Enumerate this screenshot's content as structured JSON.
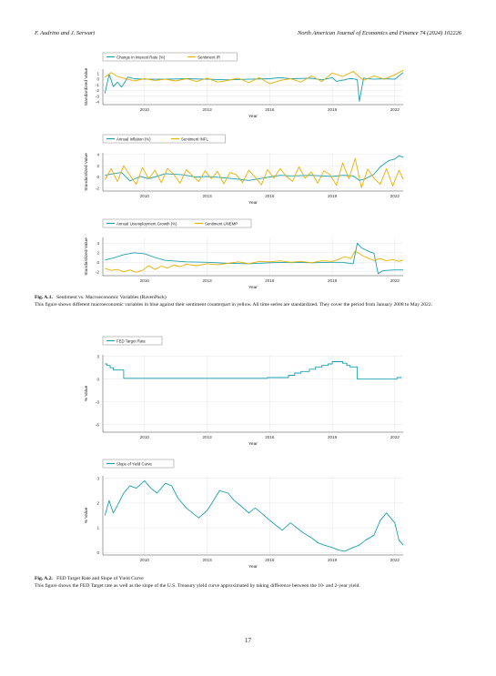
{
  "header": {
    "authors": "F. Audrino and J. Serwart",
    "journal": "North American Journal of Economics and Finance 74 (2024) 102226"
  },
  "colors": {
    "blue": "#1a9fb0",
    "yellow": "#e8b100",
    "grid": "#e6e6e6",
    "axis": "#444444"
  },
  "chart_data": [
    {
      "id": "c1",
      "type": "line",
      "legend": [
        "Change in Interest Rate (%)",
        "Sentiment IR"
      ],
      "ylabel": "Standardized Value",
      "xlabel": "Year",
      "ylim": [
        -4.5,
        1.8
      ],
      "yticks": [
        -4,
        -3,
        -2,
        -1,
        0,
        1
      ],
      "xlim": [
        2008.0,
        2022.4
      ],
      "xticks": [
        2010,
        2013,
        2016,
        2019,
        2022
      ],
      "series": [
        {
          "color": "blue",
          "x": [
            2008.1,
            2008.3,
            2008.5,
            2008.7,
            2008.9,
            2009.2,
            2009.5,
            2010,
            2011,
            2012,
            2013,
            2014,
            2015,
            2016,
            2016.5,
            2017,
            2018,
            2018.5,
            2019,
            2019.2,
            2019.4,
            2019.6,
            2019.8,
            2020,
            2020.2,
            2020.3,
            2020.5,
            2021,
            2021.5,
            2022,
            2022.2,
            2022.4
          ],
          "y": [
            -2.5,
            0.9,
            -1.3,
            -0.5,
            -1.4,
            0.4,
            0.1,
            0,
            0,
            0.1,
            0,
            -0.1,
            0,
            0.1,
            0.3,
            0.1,
            0.2,
            -0.1,
            0.3,
            -0.4,
            -0.2,
            -0.1,
            0.1,
            0.1,
            -0.1,
            -3.9,
            0.2,
            0,
            0.1,
            0,
            0.6,
            1.2
          ]
        },
        {
          "color": "yellow",
          "x": [
            2008.1,
            2008.4,
            2008.7,
            2009,
            2009.5,
            2010,
            2010.5,
            2011,
            2011.5,
            2012,
            2012.5,
            2013,
            2013.5,
            2014,
            2014.5,
            2015,
            2015.5,
            2016,
            2016.5,
            2017,
            2017.5,
            2018,
            2018.5,
            2019,
            2019.5,
            2020,
            2020.5,
            2021,
            2021.5,
            2022,
            2022.4
          ],
          "y": [
            0.4,
            1.2,
            0.5,
            0.2,
            -0.3,
            0.1,
            -0.2,
            0,
            -0.3,
            0.1,
            -0.4,
            0.2,
            -0.5,
            -0.2,
            0.2,
            -0.6,
            0.3,
            -0.8,
            -0.2,
            0.1,
            -0.5,
            0.6,
            -0.4,
            1.1,
            0.5,
            1.4,
            -0.2,
            0.6,
            0,
            0.8,
            1.6
          ]
        }
      ]
    },
    {
      "id": "c2",
      "type": "line",
      "legend": [
        "Annual Inflation (%)",
        "Sentiment INFL"
      ],
      "ylabel": "Standardized Value",
      "xlabel": "Year",
      "ylim": [
        -2.5,
        4.3
      ],
      "yticks": [
        -2,
        0,
        2,
        4
      ],
      "xlim": [
        2008.0,
        2022.4
      ],
      "xticks": [
        2010,
        2013,
        2016,
        2019,
        2022
      ],
      "series": [
        {
          "color": "blue",
          "x": [
            2008.1,
            2008.5,
            2008.9,
            2009.3,
            2009.8,
            2010.2,
            2011,
            2011.8,
            2012.5,
            2013,
            2014,
            2014.5,
            2015,
            2016,
            2016.5,
            2017,
            2018,
            2019,
            2019.5,
            2020,
            2020.3,
            2020.6,
            2021,
            2021.3,
            2021.7,
            2022,
            2022.2,
            2022.4
          ],
          "y": [
            0.3,
            0.6,
            0.8,
            -0.7,
            0.1,
            -0.3,
            0.6,
            0.4,
            0,
            0.1,
            -0.2,
            -0.4,
            -0.6,
            0,
            0.3,
            0.2,
            0.3,
            0.1,
            0.3,
            0.2,
            -0.6,
            -0.3,
            0.5,
            1.8,
            2.9,
            3.2,
            3.8,
            3.5
          ]
        },
        {
          "color": "yellow",
          "x": [
            2008.1,
            2008.4,
            2008.7,
            2009,
            2009.3,
            2009.6,
            2009.9,
            2010.2,
            2010.5,
            2010.8,
            2011.1,
            2011.4,
            2011.7,
            2012,
            2012.3,
            2012.6,
            2012.9,
            2013.2,
            2013.5,
            2013.8,
            2014.1,
            2014.4,
            2014.7,
            2015,
            2015.3,
            2015.6,
            2015.9,
            2016.2,
            2016.5,
            2016.8,
            2017.1,
            2017.4,
            2017.7,
            2018,
            2018.3,
            2018.6,
            2018.9,
            2019.2,
            2019.5,
            2019.8,
            2020.1,
            2020.4,
            2020.7,
            2021,
            2021.3,
            2021.6,
            2021.9,
            2022.2,
            2022.4
          ],
          "y": [
            -0.5,
            1.5,
            -0.8,
            2,
            0.3,
            -1.3,
            1.7,
            -0.3,
            1.2,
            -1,
            1.5,
            0.5,
            -1.1,
            1.3,
            0.2,
            -0.8,
            1.1,
            -0.3,
            1,
            -1.2,
            0.8,
            0.4,
            -1,
            1.2,
            0,
            -1.4,
            1.3,
            -0.2,
            1.5,
            0.1,
            -0.8,
            1.8,
            -0.2,
            0.9,
            -1.1,
            1.1,
            0.4,
            -1.5,
            2.5,
            -0.3,
            3.3,
            -1.9,
            1.4,
            -0.2,
            -1.3,
            1.5,
            -1.6,
            1.2,
            -0.4
          ]
        }
      ]
    },
    {
      "id": "c3",
      "type": "line",
      "legend": [
        "Annual Unemployment Growth (%)",
        "Sentiment UNEMP"
      ],
      "ylabel": "Standardized Value",
      "xlabel": "Year",
      "ylim": [
        -2.8,
        5.2
      ],
      "yticks": [
        -2,
        0,
        2,
        4
      ],
      "xlim": [
        2008.0,
        2022.4
      ],
      "xticks": [
        2010,
        2013,
        2016,
        2019,
        2022
      ],
      "series": [
        {
          "color": "blue",
          "x": [
            2008.1,
            2008.5,
            2009,
            2009.5,
            2010,
            2010.5,
            2011,
            2012,
            2013,
            2014,
            2015,
            2016,
            2017,
            2018,
            2019,
            2019.5,
            2019.8,
            2020,
            2020.2,
            2020.4,
            2020.8,
            2021,
            2021.2,
            2021.4,
            2021.6,
            2022,
            2022.4
          ],
          "y": [
            0.5,
            0.9,
            1.6,
            2,
            1.8,
            1,
            0.4,
            0.1,
            0,
            -0.2,
            -0.3,
            -0.1,
            0,
            -0.1,
            0,
            0,
            -0.2,
            -0.3,
            4,
            3,
            2.2,
            1.9,
            -2.4,
            -1.8,
            -1.7,
            -1.6,
            -1.6
          ]
        },
        {
          "color": "yellow",
          "x": [
            2008.1,
            2008.4,
            2008.7,
            2009,
            2009.3,
            2009.6,
            2009.9,
            2010.2,
            2010.5,
            2010.8,
            2011.1,
            2011.4,
            2011.7,
            2012,
            2012.5,
            2013,
            2013.5,
            2014,
            2014.5,
            2015,
            2015.5,
            2016,
            2016.5,
            2017,
            2017.5,
            2018,
            2018.5,
            2019,
            2019.3,
            2019.6,
            2019.9,
            2020.1,
            2020.4,
            2020.7,
            2021,
            2021.3,
            2021.6,
            2021.9,
            2022.2,
            2022.4
          ],
          "y": [
            -1.3,
            -1.7,
            -1.5,
            -2,
            -1.6,
            -2.1,
            -1.7,
            -0.7,
            -1.5,
            -0.8,
            -1.2,
            -0.6,
            -0.9,
            -0.4,
            -0.7,
            -0.3,
            -0.5,
            -0.2,
            0.1,
            -0.3,
            0.2,
            0.1,
            0.3,
            0,
            0.2,
            -0.1,
            0.3,
            0.2,
            0.6,
            1.2,
            0.8,
            2.4,
            1.5,
            0.9,
            0.4,
            0.8,
            0.3,
            0.6,
            0.2,
            0.5
          ]
        }
      ]
    },
    {
      "id": "c4",
      "type": "line",
      "legend": [
        "FED Target Rate"
      ],
      "ylabel": "% Value",
      "xlabel": "Year",
      "ylim": [
        -7,
        3.2
      ],
      "yticks": [
        -6,
        -3,
        0,
        3
      ],
      "xlim": [
        2008.0,
        2022.4
      ],
      "xticks": [
        2010,
        2013,
        2016,
        2019,
        2022
      ],
      "series": [
        {
          "color": "blue",
          "step": true,
          "x": [
            2008.1,
            2008.2,
            2008.35,
            2008.5,
            2008.8,
            2009,
            2015.9,
            2016.9,
            2017.2,
            2017.5,
            2017.9,
            2018.2,
            2018.5,
            2018.8,
            2019.0,
            2019.5,
            2019.7,
            2019.85,
            2020.2,
            2022.1,
            2022.3
          ],
          "y": [
            2,
            1.8,
            1.5,
            1.2,
            1.2,
            0.1,
            0.2,
            0.5,
            0.8,
            1,
            1.3,
            1.6,
            1.8,
            2,
            2.3,
            2.1,
            1.8,
            1.6,
            0,
            0.2,
            0.3
          ]
        }
      ]
    },
    {
      "id": "c5",
      "type": "line",
      "legend": [
        "Slope of Yield Curve"
      ],
      "ylabel": "% Value",
      "xlabel": "Year",
      "ylim": [
        -0.1,
        3.1
      ],
      "yticks": [
        0,
        1,
        2,
        3
      ],
      "xlim": [
        2008.0,
        2022.4
      ],
      "xticks": [
        2010,
        2013,
        2016,
        2019,
        2022
      ],
      "series": [
        {
          "color": "blue",
          "x": [
            2008.1,
            2008.3,
            2008.5,
            2008.7,
            2009,
            2009.3,
            2009.6,
            2010,
            2010.3,
            2010.6,
            2011,
            2011.3,
            2011.6,
            2012,
            2012.3,
            2012.6,
            2013,
            2013.3,
            2013.6,
            2014,
            2014.3,
            2014.6,
            2015,
            2015.3,
            2015.6,
            2016,
            2016.3,
            2016.6,
            2017,
            2017.3,
            2017.6,
            2018,
            2018.3,
            2018.6,
            2019,
            2019.3,
            2019.6,
            2020,
            2020.3,
            2020.6,
            2021,
            2021.3,
            2021.6,
            2022,
            2022.2,
            2022.4
          ],
          "y": [
            1.5,
            2.1,
            1.6,
            1.9,
            2.4,
            2.7,
            2.6,
            2.9,
            2.6,
            2.4,
            2.8,
            2.7,
            2.2,
            1.8,
            1.6,
            1.4,
            1.7,
            2.1,
            2.5,
            2.4,
            2.1,
            1.9,
            1.6,
            1.8,
            1.6,
            1.3,
            1.1,
            0.9,
            1.2,
            1,
            0.8,
            0.6,
            0.4,
            0.3,
            0.2,
            0.1,
            0.05,
            0.2,
            0.3,
            0.5,
            0.7,
            1.3,
            1.6,
            1.2,
            0.5,
            0.3
          ]
        }
      ]
    }
  ],
  "captions": [
    {
      "label": "Fig. A.1.",
      "title": "Sentiment vs. Macroeconomic Variables (RavenPack)",
      "body": "This figure shows different macroeconomic variables in blue against their sentiment counterpart in yellow. All time series are standardized. They cover the period from January 2008 to May 2022."
    },
    {
      "label": "Fig. A.2.",
      "title": "FED Target Rate and Slope of Yield Curve",
      "body": "This figure shows the FED Target rate as well as the slope of the U.S. Treasury yield curve approximated by taking difference between the 10- and 2-year yield."
    }
  ],
  "page_number": "17"
}
